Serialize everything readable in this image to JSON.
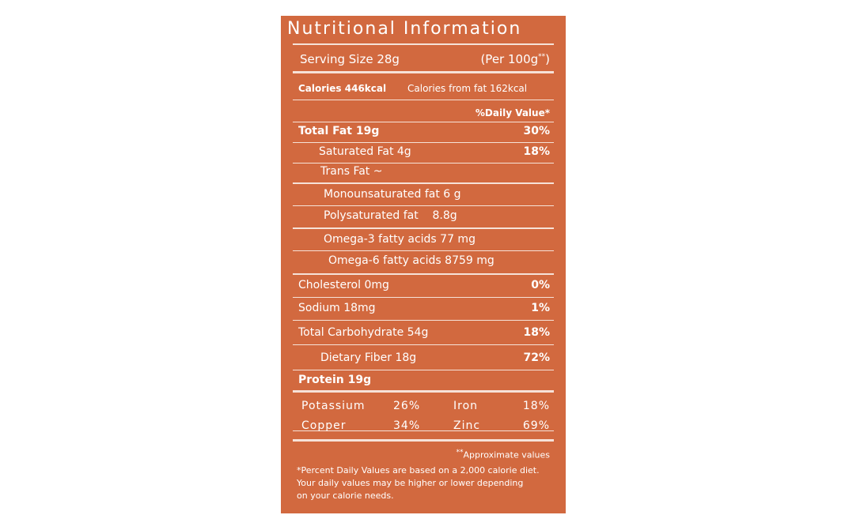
{
  "title": "Nutritional Information",
  "serving": {
    "size": "Serving Size 28g",
    "per": "(Per 100g",
    "per_mark": "**",
    "per_close": ")"
  },
  "calories": "Calories 446kcal",
  "calories_from_fat": "Calories from fat 162kcal",
  "daily_value_header": "%Daily Value*",
  "rows": [
    {
      "label": "Total Fat 19g",
      "dv": "30%"
    },
    {
      "label": "Saturated Fat 4g",
      "dv": "18%"
    },
    {
      "label": "Trans Fat ~"
    },
    {
      "label": "Monounsaturated fat 6 g"
    },
    {
      "label": "Polysaturated fat    8.8g"
    },
    {
      "label": "Omega-3 fatty acids 77 mg"
    },
    {
      "label": "Omega-6 fatty acids 8759 mg"
    },
    {
      "label": "Cholesterol 0mg",
      "dv": "0%"
    },
    {
      "label": "Sodium 18mg",
      "dv": "1%"
    },
    {
      "label": "Total Carbohydrate 54g",
      "dv": "18%"
    },
    {
      "label": "Dietary Fiber 18g",
      "dv": "72%"
    },
    {
      "label": "Protein 19g"
    }
  ],
  "minerals": [
    [
      "Potassium",
      "26%",
      "Iron",
      "18%"
    ],
    [
      "Copper",
      "34%",
      "Zinc",
      "69%"
    ]
  ],
  "approx_mark": "**",
  "approx": "Approximate values",
  "footnote": [
    "*Percent Daily Values are based on a 2,000 calorie diet.",
    "Your daily values may be higher or lower depending",
    "on your calorie needs."
  ]
}
